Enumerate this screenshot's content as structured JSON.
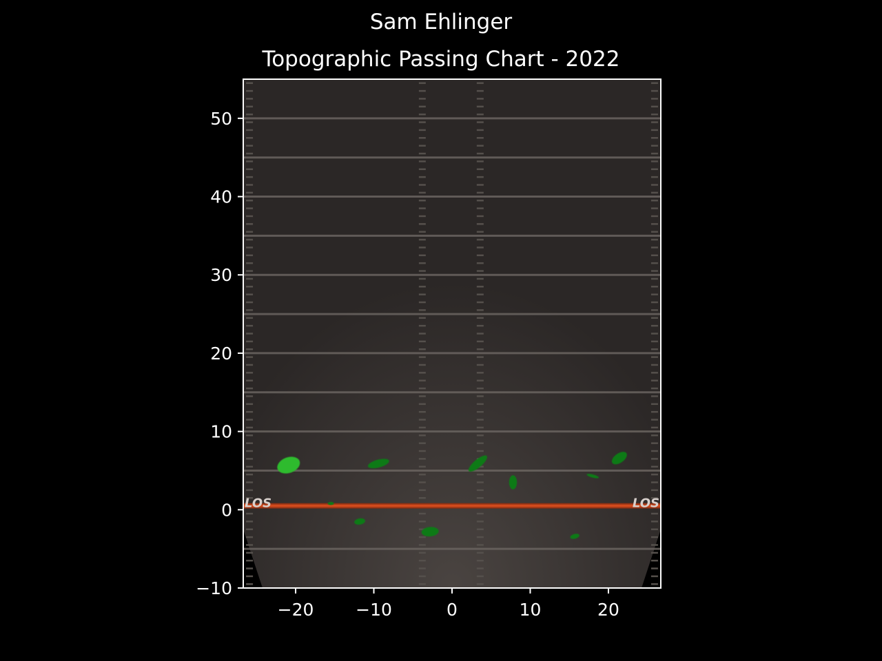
{
  "chart_data": {
    "type": "heatmap",
    "title": "Sam Ehlinger",
    "subtitle": "Topographic Passing Chart - 2022",
    "xlabel": "",
    "ylabel": "",
    "xlim": [
      -26.7,
      26.7
    ],
    "ylim": [
      -10,
      55
    ],
    "x_ticks": [
      -20,
      -10,
      0,
      10,
      20
    ],
    "y_ticks": [
      -10,
      0,
      10,
      20,
      30,
      40,
      50
    ],
    "x_tick_labels": [
      "−20",
      "−10",
      "0",
      "10",
      "20"
    ],
    "y_tick_labels": [
      "−10",
      "0",
      "10",
      "20",
      "30",
      "40",
      "50"
    ],
    "background": "football field",
    "field_line_yards": [
      -5,
      5,
      10,
      15,
      20,
      25,
      30,
      35,
      40,
      45,
      50
    ],
    "line_of_scrimmage_yard": 0.5,
    "los_label": "LOS",
    "grid": false,
    "density_regions": [
      {
        "x": -20.9,
        "y": 5.7,
        "rx": 1.5,
        "ry": 1.0,
        "angle": -20,
        "level": "high"
      },
      {
        "x": -9.4,
        "y": 5.9,
        "rx": 1.4,
        "ry": 0.5,
        "angle": -15,
        "level": "low"
      },
      {
        "x": 3.3,
        "y": 5.9,
        "rx": 1.5,
        "ry": 0.5,
        "angle": -40,
        "level": "low"
      },
      {
        "x": 7.8,
        "y": 3.5,
        "rx": 0.5,
        "ry": 0.9,
        "angle": 0,
        "level": "low"
      },
      {
        "x": 21.4,
        "y": 6.6,
        "rx": 1.1,
        "ry": 0.6,
        "angle": -35,
        "level": "low"
      },
      {
        "x": 18.0,
        "y": 4.3,
        "rx": 0.8,
        "ry": 0.2,
        "angle": 15,
        "level": "low"
      },
      {
        "x": -15.5,
        "y": 0.8,
        "rx": 0.4,
        "ry": 0.2,
        "angle": 0,
        "level": "low"
      },
      {
        "x": -11.8,
        "y": -1.5,
        "rx": 0.7,
        "ry": 0.4,
        "angle": -10,
        "level": "low"
      },
      {
        "x": -2.8,
        "y": -2.8,
        "rx": 1.1,
        "ry": 0.6,
        "angle": -5,
        "level": "low"
      },
      {
        "x": 15.7,
        "y": -3.4,
        "rx": 0.6,
        "ry": 0.3,
        "angle": -15,
        "level": "low"
      }
    ],
    "colors": {
      "background": "#000000",
      "field": "#2b2726",
      "field_lines": "#6a6460",
      "los_line": "#d2401a",
      "density_low": "#0f7a18",
      "density_high": "#2dbb2d",
      "axes": "#ffffff"
    }
  }
}
